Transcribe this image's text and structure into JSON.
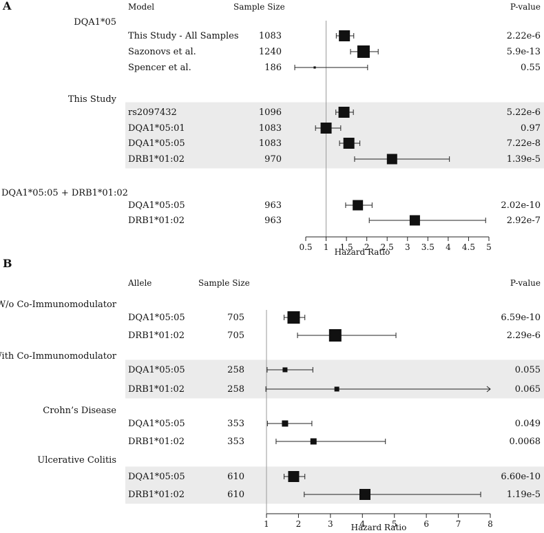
{
  "chart_data": [
    {
      "type": "forest",
      "panel": "A",
      "headers": {
        "label": "Model",
        "sample": "Sample Size",
        "pvalue": "P-value"
      },
      "xlabel": "Hazard Ratio",
      "xlim": [
        0.5,
        5
      ],
      "ticks": [
        "0.5",
        "1",
        "1.5",
        "2",
        "2.5",
        "3",
        "3.5",
        "4",
        "4.5",
        "5"
      ],
      "reference": 1,
      "groups": [
        {
          "title": "DQA1*05",
          "rows": [
            {
              "label": "This Study - All Samples",
              "n": "1083",
              "hr": 1.45,
              "lo": 1.25,
              "hi": 1.68,
              "p": "2.22e-6",
              "size": 8,
              "shade": false
            },
            {
              "label": "Sazonovs et al.",
              "n": "1240",
              "hr": 1.92,
              "lo": 1.6,
              "hi": 2.28,
              "p": "5.9e-13",
              "size": 9,
              "shade": false
            },
            {
              "label": "Spencer et al.",
              "n": "186",
              "hr": 0.72,
              "lo": 0.23,
              "hi": 2.02,
              "p": "0.55",
              "size": 1.6,
              "shade": false
            }
          ]
        },
        {
          "title": "This Study",
          "rows": [
            {
              "label": "rs2097432",
              "n": "1096",
              "hr": 1.44,
              "lo": 1.24,
              "hi": 1.67,
              "p": "5.22e-6",
              "size": 8,
              "shade": true
            },
            {
              "label": "DQA1*05:01",
              "n": "1083",
              "hr": 1.0,
              "lo": 0.74,
              "hi": 1.36,
              "p": "0.97",
              "size": 8,
              "shade": true
            },
            {
              "label": "DQA1*05:05",
              "n": "1083",
              "hr": 1.56,
              "lo": 1.33,
              "hi": 1.83,
              "p": "7.22e-8",
              "size": 8,
              "shade": true
            },
            {
              "label": "DRB1*01:02",
              "n": "970",
              "hr": 2.62,
              "lo": 1.7,
              "hi": 4.03,
              "p": "1.39e-5",
              "size": 7.5,
              "shade": true
            }
          ]
        },
        {
          "title": "DQA1*05:05 + DRB1*01:02",
          "rows": [
            {
              "label": "DQA1*05:05",
              "n": "963",
              "hr": 1.78,
              "lo": 1.48,
              "hi": 2.13,
              "p": "2.02e-10",
              "size": 7.5,
              "shade": false
            },
            {
              "label": "DRB1*01:02",
              "n": "963",
              "hr": 3.18,
              "lo": 2.06,
              "hi": 4.92,
              "p": "2.92e-7",
              "size": 7.5,
              "shade": false
            }
          ]
        }
      ]
    },
    {
      "type": "forest",
      "panel": "B",
      "headers": {
        "label": "Allele",
        "sample": "Sample Size",
        "pvalue": "P-value"
      },
      "xlabel": "Hazard Ratio",
      "xlim": [
        1,
        8
      ],
      "ticks": [
        "1",
        "2",
        "3",
        "4",
        "5",
        "6",
        "7",
        "8"
      ],
      "reference": 1,
      "groups": [
        {
          "title": "W/o Co-Immunomodulator",
          "rows": [
            {
              "label": "DQA1*05:05",
              "n": "705",
              "hr": 1.85,
              "lo": 1.55,
              "hi": 2.2,
              "p": "6.59e-10",
              "size": 9,
              "shade": false
            },
            {
              "label": "DRB1*01:02",
              "n": "705",
              "hr": 3.15,
              "lo": 1.97,
              "hi": 5.05,
              "p": "2.29e-6",
              "size": 9,
              "shade": false
            }
          ]
        },
        {
          "title": "With Co-Immunomodulator",
          "rows": [
            {
              "label": "DQA1*05:05",
              "n": "258",
              "hr": 1.58,
              "lo": 1.02,
              "hi": 2.45,
              "p": "0.055",
              "size": 3.5,
              "shade": true
            },
            {
              "label": "DRB1*01:02",
              "n": "258",
              "hr": 3.2,
              "lo": 0.98,
              "hi": 8.0,
              "p": "0.065",
              "size": 3.5,
              "shade": true,
              "arrow": true
            }
          ]
        },
        {
          "title": "Crohn’s Disease",
          "rows": [
            {
              "label": "DQA1*05:05",
              "n": "353",
              "hr": 1.58,
              "lo": 1.03,
              "hi": 2.42,
              "p": "0.049",
              "size": 4.5,
              "shade": false
            },
            {
              "label": "DRB1*01:02",
              "n": "353",
              "hr": 2.47,
              "lo": 1.3,
              "hi": 4.72,
              "p": "0.0068",
              "size": 4.5,
              "shade": false
            }
          ]
        },
        {
          "title": "Ulcerative Colitis",
          "rows": [
            {
              "label": "DQA1*05:05",
              "n": "610",
              "hr": 1.85,
              "lo": 1.55,
              "hi": 2.2,
              "p": "6.60e-10",
              "size": 8,
              "shade": true
            },
            {
              "label": "DRB1*01:02",
              "n": "610",
              "hr": 4.08,
              "lo": 2.18,
              "hi": 7.7,
              "p": "1.19e-5",
              "size": 8,
              "shade": true
            }
          ]
        }
      ]
    }
  ]
}
